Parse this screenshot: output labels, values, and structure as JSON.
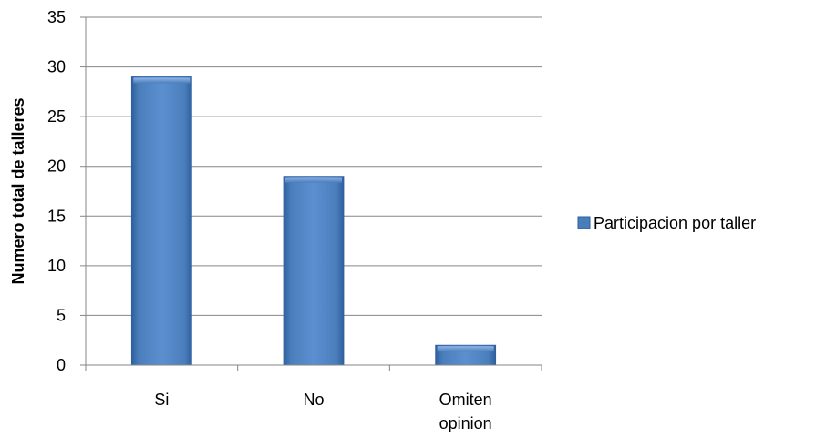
{
  "chart_data": {
    "type": "bar",
    "title": "",
    "xlabel": "",
    "ylabel": "Numero total de talleres",
    "categories": [
      [
        "Si"
      ],
      [
        "No"
      ],
      [
        "Omiten",
        "opinion"
      ]
    ],
    "series": [
      {
        "name": "Participacion por taller",
        "values": [
          29,
          19,
          2
        ],
        "color": "#4a7ebb"
      }
    ],
    "ylim": [
      0,
      35
    ],
    "yticks": [
      0,
      5,
      10,
      15,
      20,
      25,
      30,
      35
    ],
    "grid": true,
    "legend": "right"
  }
}
